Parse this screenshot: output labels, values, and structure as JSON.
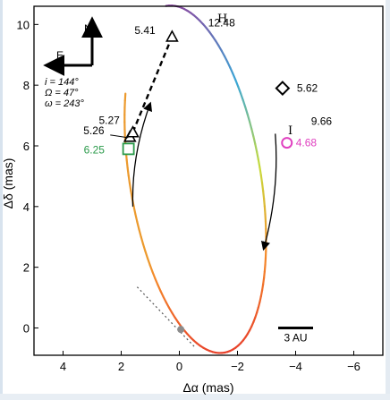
{
  "chart_data": {
    "type": "scatter",
    "title": "",
    "xlabel": "Δα (mas)",
    "ylabel": "Δδ (mas)",
    "xlim": [
      5,
      -7
    ],
    "ylim": [
      -0.9,
      10.6
    ],
    "x_ticks": [
      4,
      2,
      0,
      -2,
      -4,
      -6
    ],
    "y_ticks": [
      0,
      2,
      4,
      6,
      8,
      10
    ],
    "x_tick_labels": [
      "4",
      "2",
      "0",
      "−2",
      "−4",
      "−6"
    ],
    "y_tick_labels": [
      "0",
      "2",
      "4",
      "6",
      "8",
      "10"
    ],
    "grid": false,
    "compass": {
      "north": "N",
      "east": "E"
    },
    "orbit_parameters": {
      "i": "i = 144°",
      "omega_node": "Ω = 47°",
      "omega_peri": "ω = 243°"
    },
    "scale_bar": {
      "label": "3 AU",
      "x_start": -3.4,
      "x_end": -4.6,
      "y": 0
    },
    "central_star": {
      "x": -0.05,
      "y": -0.05,
      "color": "#8c8c8c"
    },
    "orbit": {
      "center": [
        -0.55,
        4.9
      ],
      "semi_axis_a": 5.8,
      "semi_axis_b": 2.25,
      "tilt_deg": -10,
      "colors": [
        "#e8412a",
        "#f58a2a",
        "#c8dc3c",
        "#3aa6d6",
        "#8a4aa0"
      ]
    },
    "periastron_line": [
      [
        1.45,
        1.35
      ],
      [
        -0.55,
        -0.65
      ]
    ],
    "epochs": [
      {
        "label": "5.26",
        "x": 1.7,
        "y": 6.3,
        "marker": "triangle",
        "color": "#000000"
      },
      {
        "label": "5.27",
        "x": 1.6,
        "y": 6.45,
        "marker": "triangle",
        "color": "#000000"
      },
      {
        "label": "5.41",
        "x": 0.25,
        "y": 9.6,
        "marker": "triangle",
        "color": "#000000"
      },
      {
        "label": "5.62",
        "x": -3.55,
        "y": 7.9,
        "marker": "diamond",
        "color": "#000000"
      },
      {
        "label": "6.25",
        "x": 1.75,
        "y": 5.9,
        "marker": "square",
        "color": "#2a9a4a"
      },
      {
        "label": "4.68",
        "x": -3.7,
        "y": 6.1,
        "marker": "circle",
        "color": "#e040c0"
      },
      {
        "label": "12.48",
        "x": -1.3,
        "y": 10.05,
        "marker": "none",
        "color": "#000000"
      },
      {
        "label": "9.66",
        "x": -4.1,
        "y": 6.7,
        "marker": "none",
        "color": "#000000"
      }
    ],
    "point_labels": {
      "H": "H",
      "I": "I"
    },
    "dashed_track": [
      [
        1.6,
        6.45
      ],
      [
        0.25,
        9.6
      ]
    ],
    "motion_arrows": [
      {
        "from": [
          1.6,
          4.0
        ],
        "to": [
          1.0,
          7.4
        ]
      },
      {
        "from": [
          -3.3,
          6.4
        ],
        "to": [
          -2.9,
          2.6
        ]
      }
    ]
  }
}
